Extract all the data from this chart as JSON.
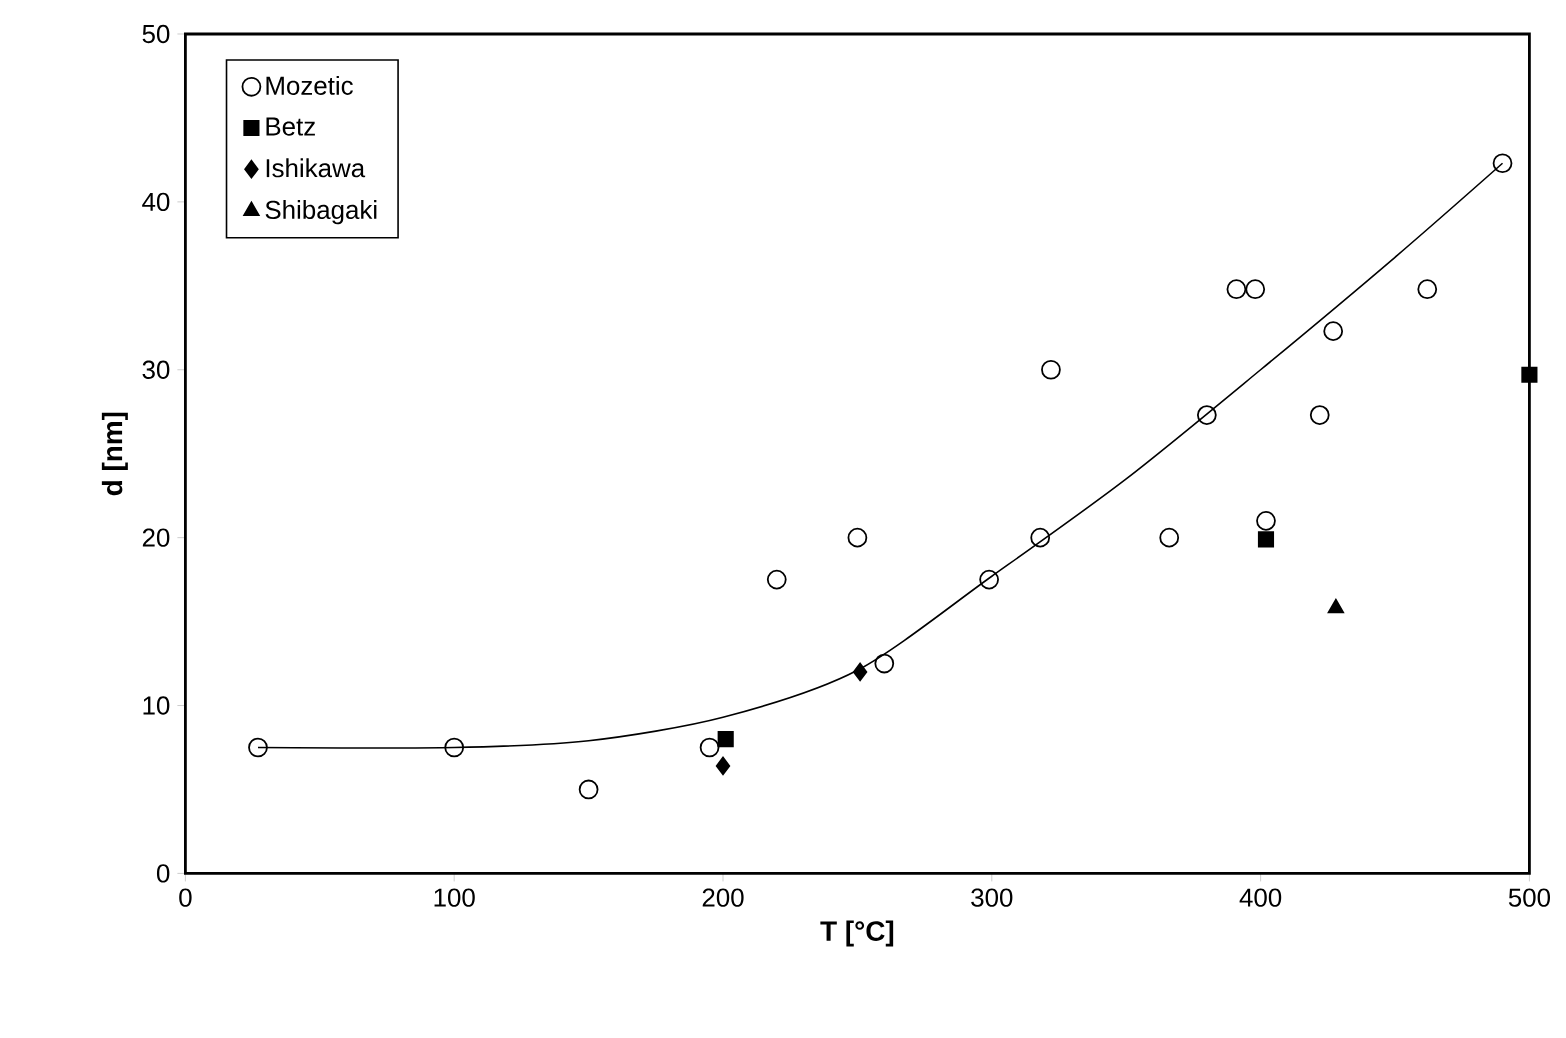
{
  "chart_data": {
    "type": "scatter",
    "xlabel": "T [°C]",
    "ylabel": "d [nm]",
    "xlim": [
      0,
      500
    ],
    "ylim": [
      0,
      50
    ],
    "xticks": [
      0,
      100,
      200,
      300,
      400,
      500
    ],
    "yticks": [
      0,
      10,
      20,
      30,
      40,
      50
    ],
    "grid": false,
    "legend": "top left",
    "series": [
      {
        "name": "Mozetic",
        "color": "#000000",
        "marker": "circle",
        "x": [
          27,
          100,
          150,
          195,
          220,
          250,
          260,
          299,
          318,
          322,
          366,
          380,
          391,
          398,
          402,
          422,
          427,
          462,
          490
        ],
        "values": [
          7.5,
          7.5,
          5,
          7.5,
          17.5,
          20,
          12.5,
          17.5,
          20,
          30,
          20,
          27.3,
          34.8,
          34.8,
          21,
          27.3,
          32.3,
          34.8,
          42.3
        ]
      },
      {
        "name": "Betz",
        "color": "#000000",
        "marker": "square",
        "x": [
          201,
          402,
          500
        ],
        "values": [
          8,
          19.9,
          29.7
        ]
      },
      {
        "name": "Ishikawa",
        "color": "#000000",
        "marker": "diamond",
        "x": [
          200,
          251
        ],
        "values": [
          6.4,
          12
        ]
      },
      {
        "name": "Shibagaki",
        "color": "#000000",
        "marker": "triangle",
        "x": [
          428
        ],
        "values": [
          15.8
        ]
      },
      {
        "type": "line",
        "color": "#000000",
        "marker": "none",
        "line_style": "solid",
        "x": [
          27,
          100,
          150,
          200,
          250,
          300,
          350,
          400,
          450,
          490
        ],
        "values": [
          7.5,
          7.5,
          7.9,
          9.3,
          12.1,
          17.7,
          23.5,
          30,
          36.7,
          42.3
        ]
      }
    ]
  }
}
